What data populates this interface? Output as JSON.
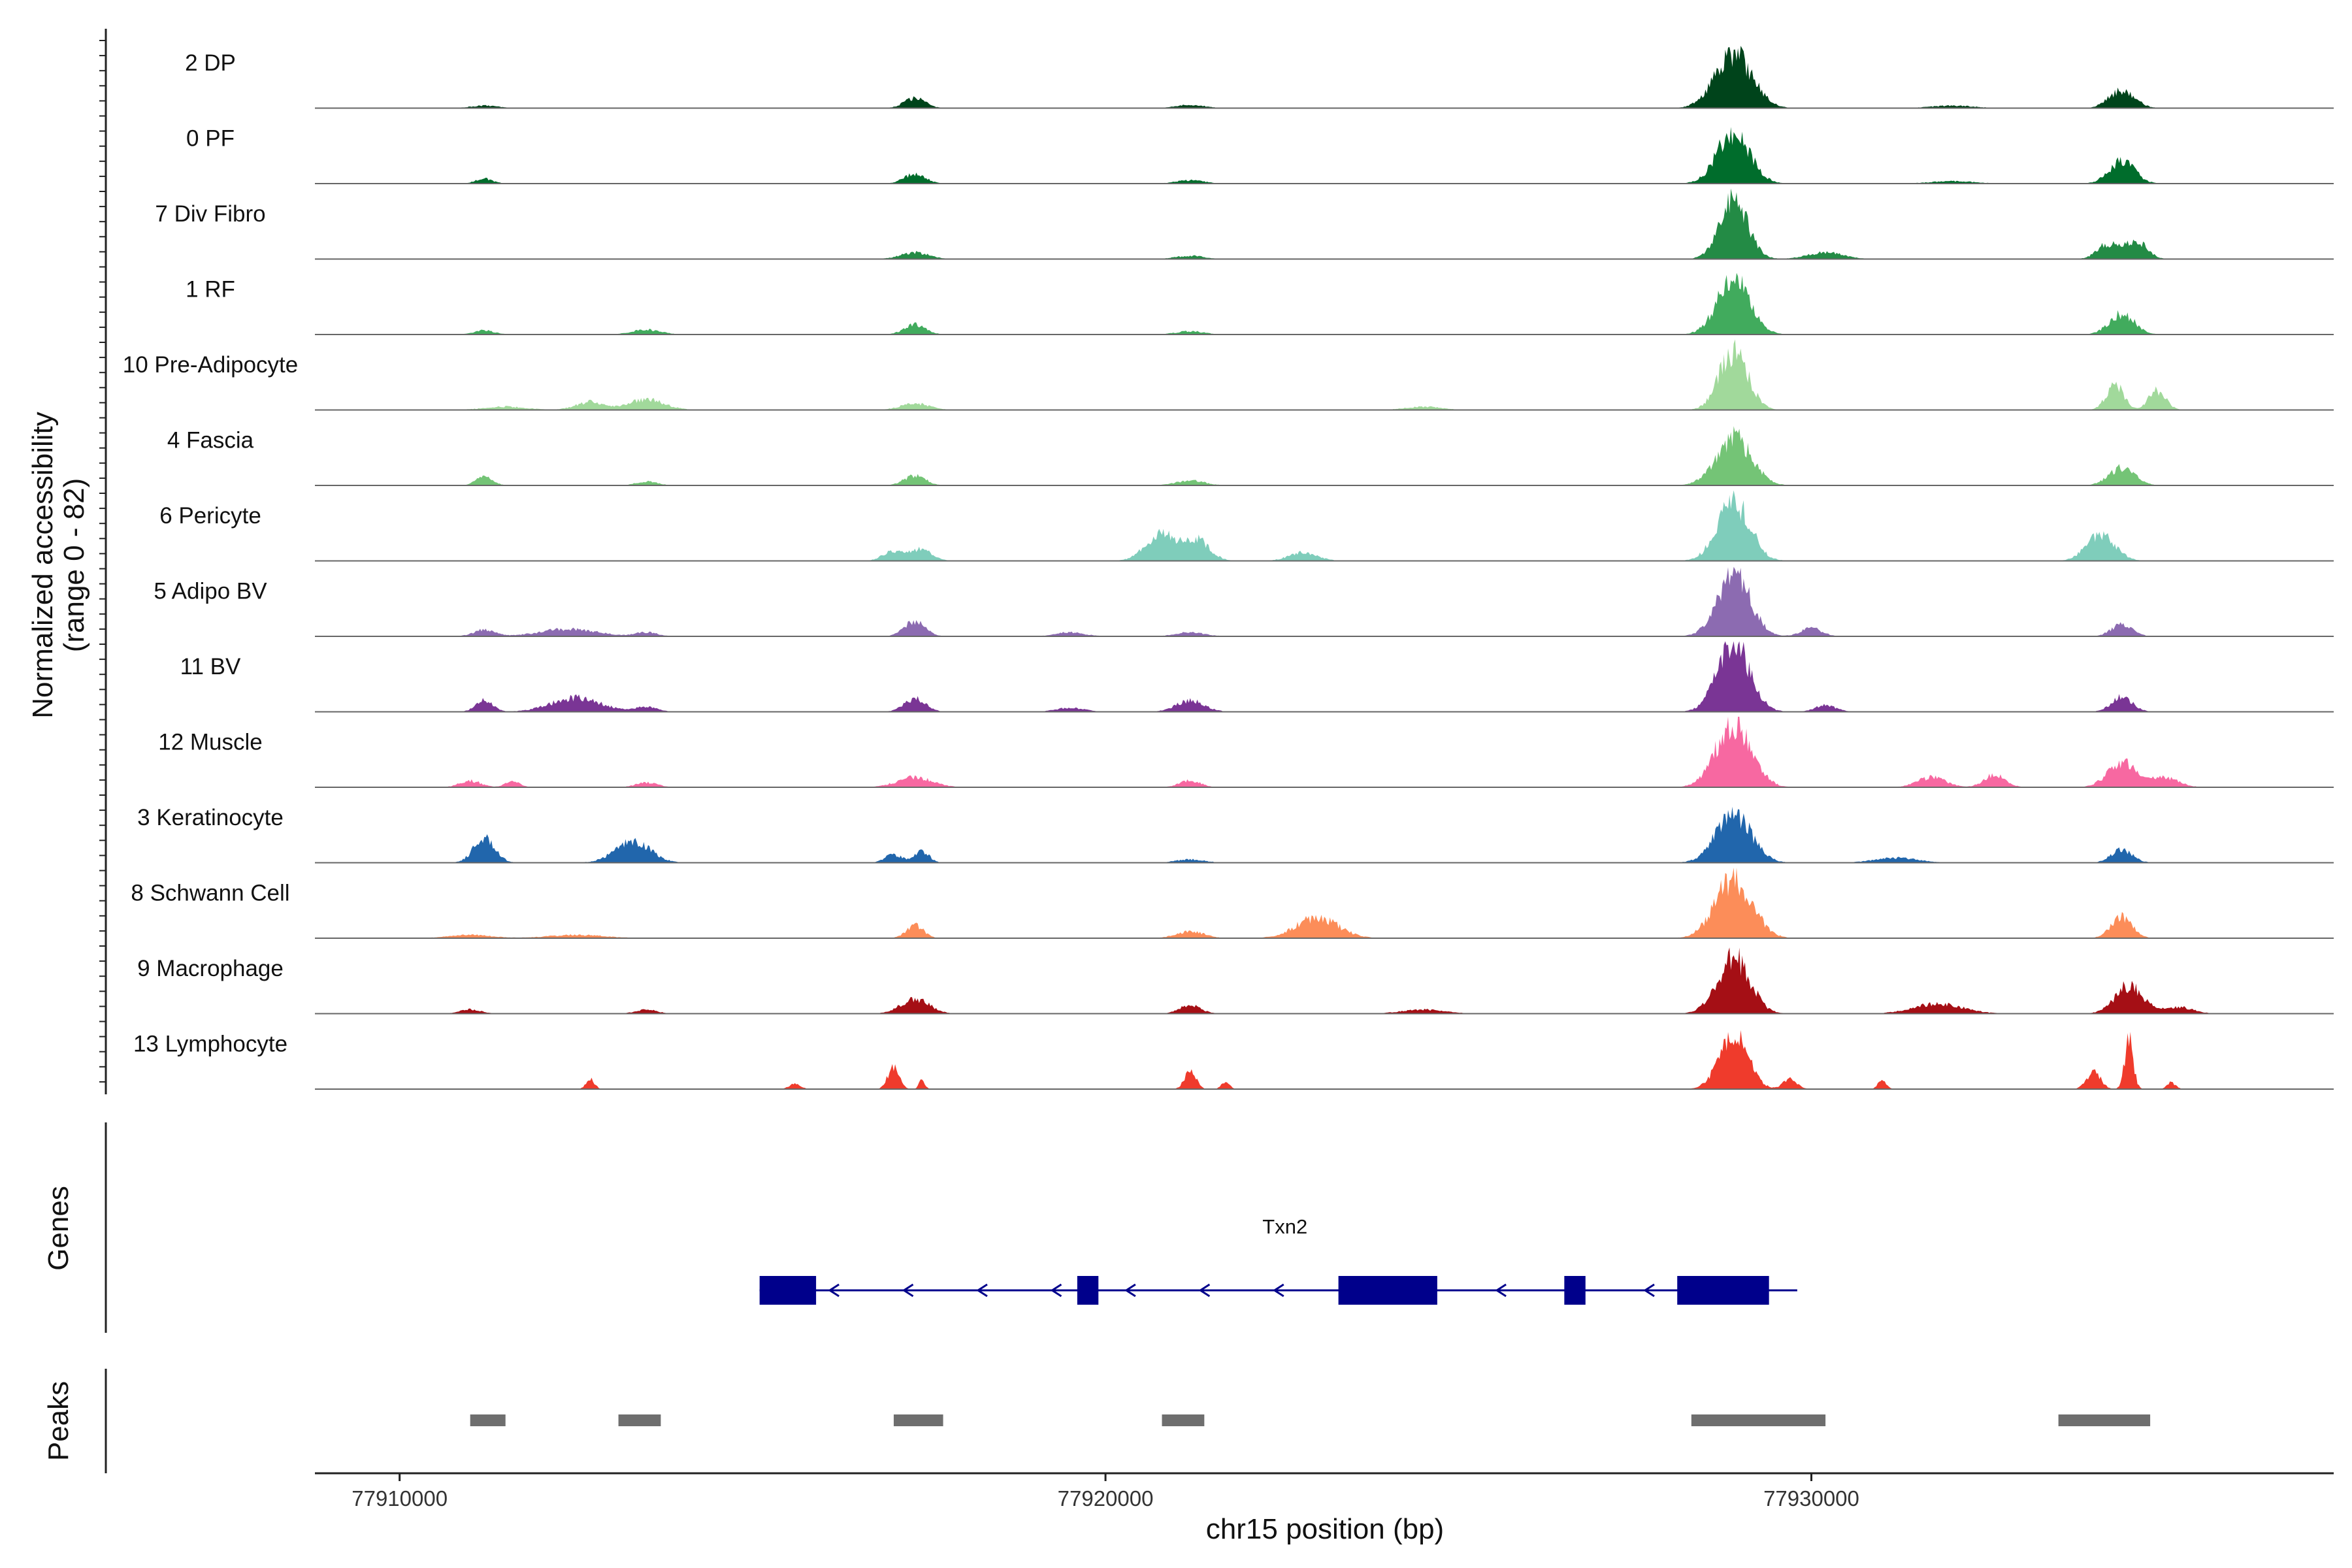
{
  "chart_data": {
    "type": "area",
    "chromosome": "chr15",
    "xlabel": "chr15 position (bp)",
    "ylabel": "Normalized accessibility",
    "ylabel_range": "(range 0 - 82)",
    "ylim": [
      0,
      82
    ],
    "xlim": [
      77908800,
      77937400
    ],
    "x_ticks": [
      77910000,
      77920000,
      77930000
    ],
    "x_tick_labels": [
      "77910000",
      "77920000",
      "77930000"
    ],
    "grid": false,
    "legend": "none",
    "tracks": [
      {
        "name": "2 DP",
        "color": "#00441b",
        "peaks": [
          [
            77911200,
            3,
            200
          ],
          [
            77917300,
            12,
            150
          ],
          [
            77921200,
            4,
            200
          ],
          [
            77928900,
            66,
            260
          ],
          [
            77932000,
            3,
            300
          ],
          [
            77934400,
            22,
            180
          ]
        ]
      },
      {
        "name": "0 PF",
        "color": "#006d2c",
        "peaks": [
          [
            77911200,
            6,
            120
          ],
          [
            77917300,
            12,
            150
          ],
          [
            77921200,
            4,
            200
          ],
          [
            77928900,
            63,
            230
          ],
          [
            77932000,
            3,
            300
          ],
          [
            77934400,
            28,
            180
          ]
        ]
      },
      {
        "name": "7 Div Fibro",
        "color": "#238b45",
        "peaks": [
          [
            77917300,
            8,
            200
          ],
          [
            77921200,
            4,
            200
          ],
          [
            77928900,
            72,
            200
          ],
          [
            77930200,
            8,
            250
          ],
          [
            77934200,
            18,
            150
          ],
          [
            77934600,
            22,
            150
          ]
        ]
      },
      {
        "name": "1 RF",
        "color": "#41ab5d",
        "peaks": [
          [
            77911200,
            5,
            150
          ],
          [
            77913500,
            6,
            200
          ],
          [
            77917300,
            12,
            150
          ],
          [
            77921200,
            4,
            200
          ],
          [
            77928900,
            68,
            230
          ],
          [
            77934400,
            25,
            180
          ]
        ]
      },
      {
        "name": "10 Pre-Adipocyte",
        "color": "#a1d99b",
        "peaks": [
          [
            77911500,
            4,
            300
          ],
          [
            77912700,
            10,
            200
          ],
          [
            77913500,
            13,
            250
          ],
          [
            77917300,
            8,
            200
          ],
          [
            77924500,
            4,
            250
          ],
          [
            77928900,
            72,
            200
          ],
          [
            77934300,
            32,
            120
          ],
          [
            77934900,
            24,
            120
          ]
        ]
      },
      {
        "name": "4 Fascia",
        "color": "#74c476",
        "peaks": [
          [
            77911200,
            10,
            120
          ],
          [
            77913500,
            5,
            150
          ],
          [
            77917300,
            12,
            150
          ],
          [
            77921200,
            6,
            200
          ],
          [
            77928900,
            58,
            250
          ],
          [
            77934400,
            22,
            180
          ]
        ]
      },
      {
        "name": "6 Pericyte",
        "color": "#7fcdbb",
        "peaks": [
          [
            77917000,
            12,
            150
          ],
          [
            77917400,
            14,
            150
          ],
          [
            77920800,
            33,
            220
          ],
          [
            77921300,
            24,
            180
          ],
          [
            77922800,
            10,
            200
          ],
          [
            77928900,
            72,
            230
          ],
          [
            77934100,
            32,
            200
          ]
        ]
      },
      {
        "name": "5 Adipo BV",
        "color": "#8c6bb1",
        "peaks": [
          [
            77911200,
            8,
            150
          ],
          [
            77912400,
            9,
            400
          ],
          [
            77913500,
            5,
            150
          ],
          [
            77917300,
            18,
            150
          ],
          [
            77919500,
            5,
            200
          ],
          [
            77921200,
            5,
            200
          ],
          [
            77928900,
            78,
            230
          ],
          [
            77930000,
            10,
            150
          ],
          [
            77934400,
            14,
            150
          ]
        ]
      },
      {
        "name": "11 BV",
        "color": "#7a3595",
        "peaks": [
          [
            77911200,
            14,
            120
          ],
          [
            77912500,
            17,
            350
          ],
          [
            77913500,
            6,
            150
          ],
          [
            77917300,
            16,
            150
          ],
          [
            77919500,
            5,
            200
          ],
          [
            77921200,
            14,
            200
          ],
          [
            77928900,
            82,
            230
          ],
          [
            77930200,
            8,
            150
          ],
          [
            77934400,
            18,
            150
          ]
        ]
      },
      {
        "name": "12 Muscle",
        "color": "#f768a1",
        "peaks": [
          [
            77911000,
            8,
            150
          ],
          [
            77911600,
            7,
            100
          ],
          [
            77913500,
            6,
            150
          ],
          [
            77917300,
            12,
            250
          ],
          [
            77921200,
            8,
            150
          ],
          [
            77928900,
            78,
            250
          ],
          [
            77931700,
            12,
            200
          ],
          [
            77932600,
            16,
            150
          ],
          [
            77934400,
            30,
            200
          ],
          [
            77935000,
            12,
            200
          ]
        ]
      },
      {
        "name": "3 Keratinocyte",
        "color": "#2166ac",
        "peaks": [
          [
            77911200,
            30,
            150
          ],
          [
            77913300,
            26,
            250
          ],
          [
            77917000,
            10,
            120
          ],
          [
            77917400,
            14,
            100
          ],
          [
            77921200,
            4,
            200
          ],
          [
            77928900,
            58,
            250
          ],
          [
            77931200,
            6,
            300
          ],
          [
            77934400,
            16,
            150
          ]
        ]
      },
      {
        "name": "8 Schwann Cell",
        "color": "#fc8d59",
        "peaks": [
          [
            77911000,
            4,
            300
          ],
          [
            77912500,
            4,
            400
          ],
          [
            77917300,
            16,
            120
          ],
          [
            77921200,
            8,
            200
          ],
          [
            77923000,
            25,
            300
          ],
          [
            77928900,
            72,
            260
          ],
          [
            77934400,
            26,
            150
          ]
        ]
      },
      {
        "name": "9 Macrophage",
        "color": "#a50f15",
        "peaks": [
          [
            77911000,
            5,
            150
          ],
          [
            77913500,
            5,
            150
          ],
          [
            77917300,
            18,
            200
          ],
          [
            77921200,
            10,
            150
          ],
          [
            77924500,
            5,
            300
          ],
          [
            77928900,
            68,
            230
          ],
          [
            77931800,
            12,
            350
          ],
          [
            77934500,
            34,
            200
          ],
          [
            77935200,
            8,
            200
          ]
        ]
      },
      {
        "name": "13 Lymphocyte",
        "color": "#ef3b2c",
        "peaks": [
          [
            77912700,
            12,
            60
          ],
          [
            77915600,
            6,
            80
          ],
          [
            77917000,
            28,
            80
          ],
          [
            77917400,
            12,
            40
          ],
          [
            77921200,
            22,
            80
          ],
          [
            77921700,
            8,
            60
          ],
          [
            77928900,
            68,
            200
          ],
          [
            77929700,
            12,
            100
          ],
          [
            77931000,
            10,
            60
          ],
          [
            77934500,
            60,
            60
          ],
          [
            77934000,
            20,
            100
          ],
          [
            77935100,
            8,
            60
          ]
        ]
      }
    ],
    "genes": {
      "title": "Genes",
      "items": [
        {
          "name": "Txn2",
          "start": 77915100,
          "end": 77929800,
          "strand": "-",
          "color": "#00008b",
          "exons": [
            [
              77915100,
              77915900
            ],
            [
              77919600,
              77919900
            ],
            [
              77923300,
              77924700
            ],
            [
              77926500,
              77926800
            ],
            [
              77928100,
              77929400
            ]
          ]
        }
      ]
    },
    "peaks_track": {
      "title": "Peaks",
      "color": "#6e6e6e",
      "regions": [
        [
          77911000,
          77911500
        ],
        [
          77913100,
          77913700
        ],
        [
          77917000,
          77917700
        ],
        [
          77920800,
          77921400
        ],
        [
          77928300,
          77930200
        ],
        [
          77933500,
          77934800
        ]
      ]
    }
  }
}
